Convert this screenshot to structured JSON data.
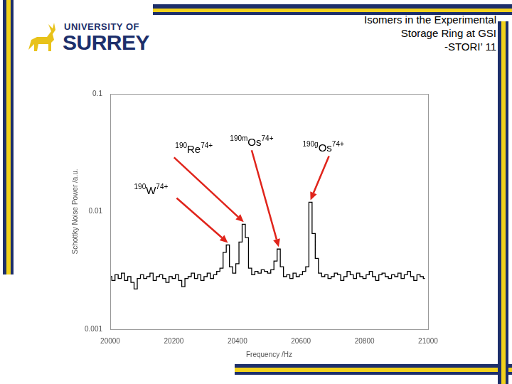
{
  "slide": {
    "title_lines": [
      "Isomers in the Experimental",
      "Storage Ring at GSI",
      "-STORI’ 11"
    ],
    "logo": [
      "UNIVERSITY OF",
      "SURREY"
    ]
  },
  "chart_data": {
    "type": "line",
    "line_style": "steps",
    "color": "#000000",
    "log": "y",
    "grid": false,
    "xlabel": "Frequency /Hz",
    "ylabel": "Schottky Noise Power /a.u.",
    "x": [
      20000,
      20010,
      20020,
      20030,
      20040,
      20050,
      20060,
      20070,
      20080,
      20090,
      20100,
      20110,
      20120,
      20130,
      20140,
      20150,
      20160,
      20170,
      20180,
      20190,
      20200,
      20210,
      20220,
      20230,
      20240,
      20250,
      20260,
      20270,
      20280,
      20290,
      20300,
      20310,
      20320,
      20330,
      20340,
      20350,
      20360,
      20370,
      20380,
      20390,
      20400,
      20410,
      20420,
      20430,
      20440,
      20450,
      20460,
      20470,
      20480,
      20490,
      20500,
      20510,
      20520,
      20530,
      20540,
      20550,
      20560,
      20570,
      20580,
      20590,
      20600,
      20610,
      20620,
      20630,
      20640,
      20650,
      20660,
      20670,
      20680,
      20690,
      20700,
      20710,
      20720,
      20730,
      20740,
      20750,
      20760,
      20770,
      20780,
      20790,
      20800,
      20810,
      20820,
      20830,
      20840,
      20850,
      20860,
      20870,
      20880,
      20890,
      20900,
      20910,
      20920,
      20930,
      20940,
      20950,
      20960,
      20970,
      20980,
      20990
    ],
    "values": [
      0.0028,
      0.0026,
      0.0029,
      0.0027,
      0.003,
      0.0026,
      0.0028,
      0.0025,
      0.0022,
      0.0027,
      0.0029,
      0.0027,
      0.0028,
      0.003,
      0.0026,
      0.0028,
      0.0029,
      0.0027,
      0.0025,
      0.0028,
      0.0027,
      0.0029,
      0.0026,
      0.0023,
      0.0027,
      0.0028,
      0.003,
      0.0027,
      0.0029,
      0.0026,
      0.0028,
      0.003,
      0.0027,
      0.0029,
      0.0031,
      0.0033,
      0.0045,
      0.0052,
      0.0034,
      0.003,
      0.0036,
      0.0055,
      0.0078,
      0.006,
      0.0033,
      0.0029,
      0.0031,
      0.003,
      0.0032,
      0.0031,
      0.003,
      0.0032,
      0.0038,
      0.0048,
      0.0034,
      0.0028,
      0.0029,
      0.0027,
      0.003,
      0.0028,
      0.0029,
      0.0031,
      0.0034,
      0.012,
      0.0065,
      0.004,
      0.003,
      0.0028,
      0.0029,
      0.0027,
      0.0028,
      0.003,
      0.0029,
      0.0026,
      0.0028,
      0.0031,
      0.0029,
      0.0027,
      0.003,
      0.0028,
      0.0027,
      0.0029,
      0.0031,
      0.0028,
      0.0026,
      0.0029,
      0.003,
      0.0028,
      0.0027,
      0.0029,
      0.0028,
      0.003,
      0.0027,
      0.0029,
      0.0031,
      0.0028,
      0.0026,
      0.0029,
      0.0028,
      0.0027
    ],
    "xlim": [
      20000,
      21000
    ],
    "xticks": [
      20000,
      20200,
      20400,
      20600,
      20800,
      21000
    ],
    "ylim": [
      0.001,
      0.1
    ],
    "yticks": [
      0.001,
      0.01,
      0.1
    ],
    "annotations": [
      {
        "text": "190W74+",
        "x": 20370,
        "y": 0.0052
      },
      {
        "text": "190Re74+",
        "x": 20420,
        "y": 0.0078
      },
      {
        "text": "190mOs74+",
        "x": 20530,
        "y": 0.0048
      },
      {
        "text": "190gOs74+",
        "x": 20630,
        "y": 0.012
      }
    ]
  }
}
